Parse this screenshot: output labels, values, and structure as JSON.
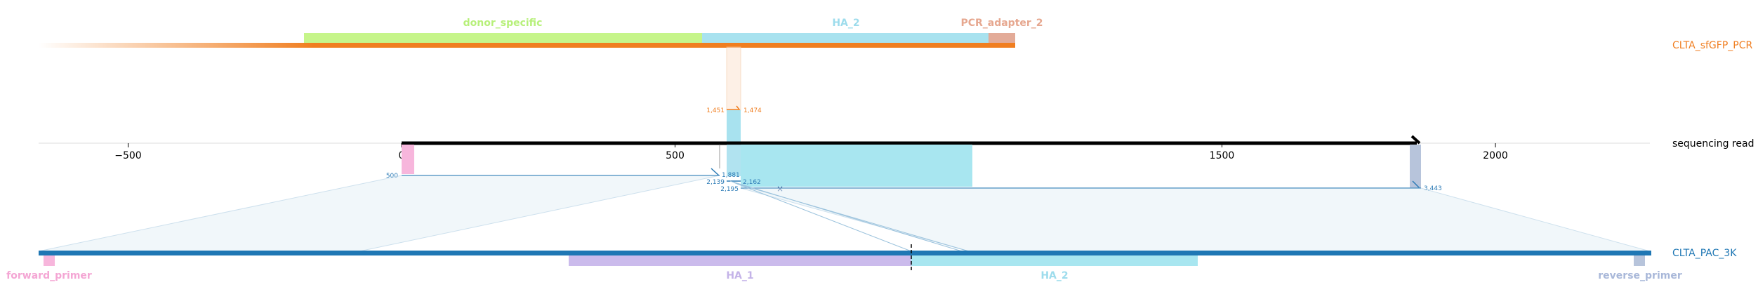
{
  "tracks": {
    "top": {
      "name": "CLTA_sfGFP_PCR",
      "color": "#f07e20"
    },
    "read": {
      "name": "sequencing read",
      "color": "#000000"
    },
    "bottom": {
      "name": "CLTA_PAC_3K",
      "color": "#1f77b4"
    }
  },
  "top_features": [
    {
      "name": "donor_specific",
      "color": "#b7f07a",
      "start": -180,
      "end": 550
    },
    {
      "name": "HA_2",
      "color": "#9ddcec",
      "start": 550,
      "end": 1075
    },
    {
      "name": "PCR_adapter_2",
      "color": "#e6a78f",
      "start": 1075,
      "end": 1125
    }
  ],
  "bottom_features": [
    {
      "name": "forward_primer",
      "color": "#f4a6d4"
    },
    {
      "name": "HA_1",
      "color": "#c4b3e8"
    },
    {
      "name": "HA_2",
      "color": "#9ddcec"
    },
    {
      "name": "reverse_primer",
      "color": "#a9b8d9"
    }
  ],
  "axis": {
    "ticks": [
      -500,
      0,
      500,
      1000,
      1500,
      2000
    ],
    "tick_labels": [
      "−500",
      "0",
      "500",
      "1000",
      "1500",
      "2000"
    ],
    "min": -670,
    "max": 2290
  },
  "annotations": {
    "top_left": "1,451",
    "top_right": "1,474",
    "read_start": "500",
    "mid_a": "1,881",
    "mid_b": "2,162",
    "mid_c": "2,139",
    "mid_d": "2,195",
    "right_end": "3,443"
  }
}
